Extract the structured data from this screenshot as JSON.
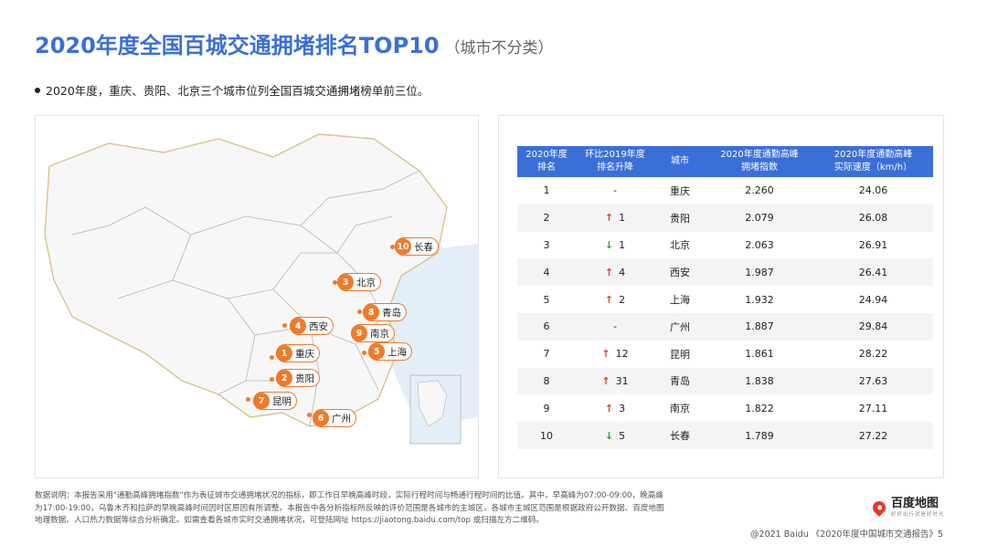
{
  "header": {
    "title": "2020年度全国百城交通拥堵排名TOP10",
    "subtitle": "（城市不分类）"
  },
  "summary": "2020年度，重庆、贵阳、北京三个城市位列全国百城交通拥堵榜单前三位。",
  "map": {
    "cities": [
      {
        "rank": "1",
        "name": "重庆"
      },
      {
        "rank": "2",
        "name": "贵阳"
      },
      {
        "rank": "3",
        "name": "北京"
      },
      {
        "rank": "4",
        "name": "西安"
      },
      {
        "rank": "5",
        "name": "上海"
      },
      {
        "rank": "6",
        "name": "广州"
      },
      {
        "rank": "7",
        "name": "昆明"
      },
      {
        "rank": "8",
        "name": "青岛"
      },
      {
        "rank": "9",
        "name": "南京"
      },
      {
        "rank": "10",
        "name": "长春"
      }
    ],
    "colors": {
      "land": "#f7f7f7",
      "border": "#b5b5b5",
      "national_border": "#d8c48a",
      "sea": "#e3eef9",
      "marker": "#f07a2a"
    }
  },
  "table": {
    "headers": [
      "2020年度\n排名",
      "环比2019年度\n排名升降",
      "城市",
      "2020年度通勤高峰\n拥堵指数",
      "2020年度通勤高峰\n实际速度（km/h）"
    ],
    "rows": [
      {
        "rank": "1",
        "trend": "none",
        "change": "-",
        "city": "重庆",
        "index": "2.260",
        "speed": "24.06"
      },
      {
        "rank": "2",
        "trend": "up",
        "change": "1",
        "city": "贵阳",
        "index": "2.079",
        "speed": "26.08"
      },
      {
        "rank": "3",
        "trend": "down",
        "change": "1",
        "city": "北京",
        "index": "2.063",
        "speed": "26.91"
      },
      {
        "rank": "4",
        "trend": "up",
        "change": "4",
        "city": "西安",
        "index": "1.987",
        "speed": "26.41"
      },
      {
        "rank": "5",
        "trend": "up",
        "change": "2",
        "city": "上海",
        "index": "1.932",
        "speed": "24.94"
      },
      {
        "rank": "6",
        "trend": "none",
        "change": "-",
        "city": "广州",
        "index": "1.887",
        "speed": "29.84"
      },
      {
        "rank": "7",
        "trend": "up",
        "change": "12",
        "city": "昆明",
        "index": "1.861",
        "speed": "28.22"
      },
      {
        "rank": "8",
        "trend": "up",
        "change": "31",
        "city": "青岛",
        "index": "1.838",
        "speed": "27.63"
      },
      {
        "rank": "9",
        "trend": "up",
        "change": "3",
        "city": "南京",
        "index": "1.822",
        "speed": "27.11"
      },
      {
        "rank": "10",
        "trend": "down",
        "change": "5",
        "city": "长春",
        "index": "1.789",
        "speed": "27.22"
      }
    ],
    "arrow_up": "↑",
    "arrow_down": "↓",
    "header_color": "#3b6fd8"
  },
  "notes": "数据说明：本报告采用\"通勤高峰拥堵指数\"作为表征城市交通拥堵状况的指标，即工作日早晚高峰时段，实际行程时间与畅通行程时间的比值。其中，早高峰为07:00-09:00，晚高峰为17:00-19:00，乌鲁木齐和拉萨的早晚高峰时间因时区原因有所调整。本报告中各分析指标所反映的评价范围是各城市的主城区，各城市主城区范围是根据政府公开数据、百度地图地理数据、人口热力数据等综合分析确定。如需查看各城市实时交通拥堵状况，可登陆网址 https://jiaotong.baidu.com/top 或扫描左方二维码。",
  "logo": {
    "brand": "百度地图",
    "slogan": "好好出行就是好时光"
  },
  "footer": "@2021 Baidu 《2020年度中国城市交通报告》5"
}
